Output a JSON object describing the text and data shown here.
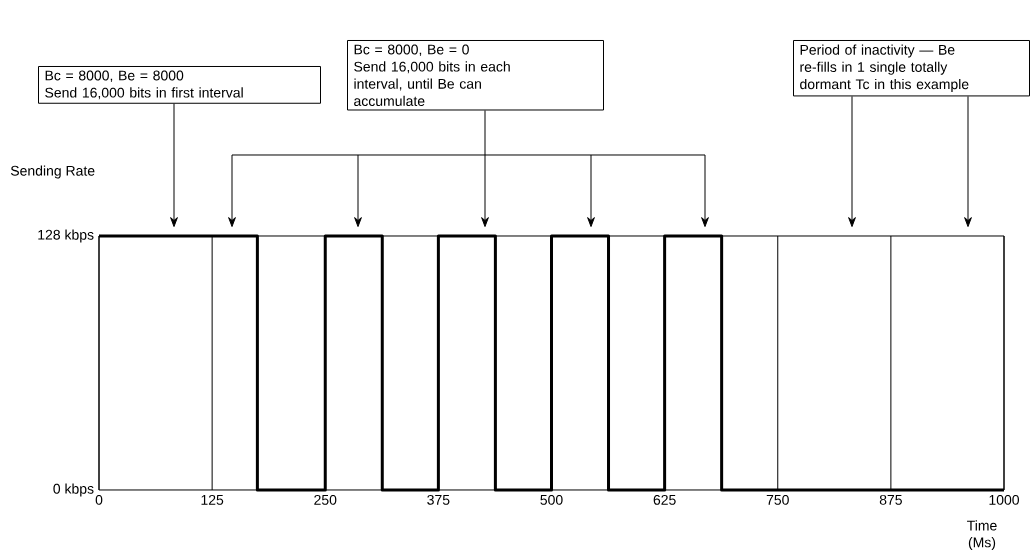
{
  "chart_data": {
    "type": "step",
    "xlabel": "Time (Ms)",
    "ylabel": "Sending Rate",
    "x": [
      0,
      175,
      250,
      313,
      375,
      438,
      500,
      563,
      625,
      688,
      1000
    ],
    "series": [
      {
        "color": "#000000",
        "values": [
          128,
          0,
          128,
          0,
          128,
          0,
          128,
          0,
          128,
          0,
          0
        ]
      }
    ],
    "xlim": [
      0,
      1000
    ],
    "ylim": [
      0,
      128
    ],
    "xticks": [
      0,
      125,
      250,
      375,
      500,
      625,
      750,
      875,
      1000
    ],
    "yticks": [
      {
        "value": 0,
        "label": "0 kbps"
      },
      {
        "value": 128,
        "label": "128 kbps"
      }
    ],
    "grid": "x",
    "annotations": [
      "Bc = 8000, Be = 8000",
      "Send 16,000 bits in first interval",
      "Bc = 8000, Be = 0",
      "Send 16,000 bits in each",
      "interval, until Be can",
      "accumulate",
      "Period of inactivity — Be",
      "re-fills in 1 single totally",
      "dormant Tc in this example"
    ]
  }
}
